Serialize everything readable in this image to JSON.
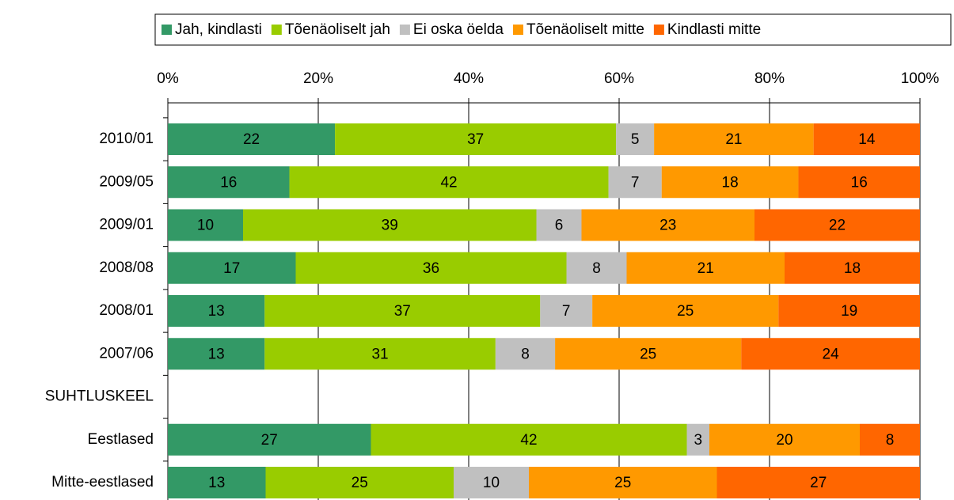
{
  "chart_data": {
    "type": "bar",
    "orientation": "horizontal",
    "stack": "percent",
    "categories": [
      "2010/01",
      "2009/05",
      "2009/01",
      "2008/08",
      "2008/01",
      "2007/06",
      "SUHTLUSKEEL",
      "Eestlased",
      "Mitte-eestlased"
    ],
    "series": [
      {
        "name": "Jah, kindlasti",
        "color": "#339966",
        "values": [
          22,
          16,
          10,
          17,
          13,
          13,
          null,
          27,
          13
        ]
      },
      {
        "name": "Tõenäoliselt jah",
        "color": "#99cc00",
        "values": [
          37,
          42,
          39,
          36,
          37,
          31,
          null,
          42,
          25
        ]
      },
      {
        "name": "Ei oska öelda",
        "color": "#c0c0c0",
        "values": [
          5,
          7,
          6,
          8,
          7,
          8,
          null,
          3,
          10
        ]
      },
      {
        "name": "Tõenäoliselt mitte",
        "color": "#ff9900",
        "values": [
          21,
          18,
          23,
          21,
          25,
          25,
          null,
          20,
          25
        ]
      },
      {
        "name": "Kindlasti mitte",
        "color": "#ff6600",
        "values": [
          14,
          16,
          22,
          18,
          19,
          24,
          null,
          8,
          27
        ]
      }
    ],
    "xlim": [
      0,
      100
    ],
    "xticks": [
      {
        "value": 0,
        "label": "0%"
      },
      {
        "value": 20,
        "label": "20%"
      },
      {
        "value": 40,
        "label": "40%"
      },
      {
        "value": 60,
        "label": "60%"
      },
      {
        "value": 80,
        "label": "80%"
      },
      {
        "value": 100,
        "label": "100%"
      }
    ],
    "grid": true,
    "legend": "top"
  }
}
